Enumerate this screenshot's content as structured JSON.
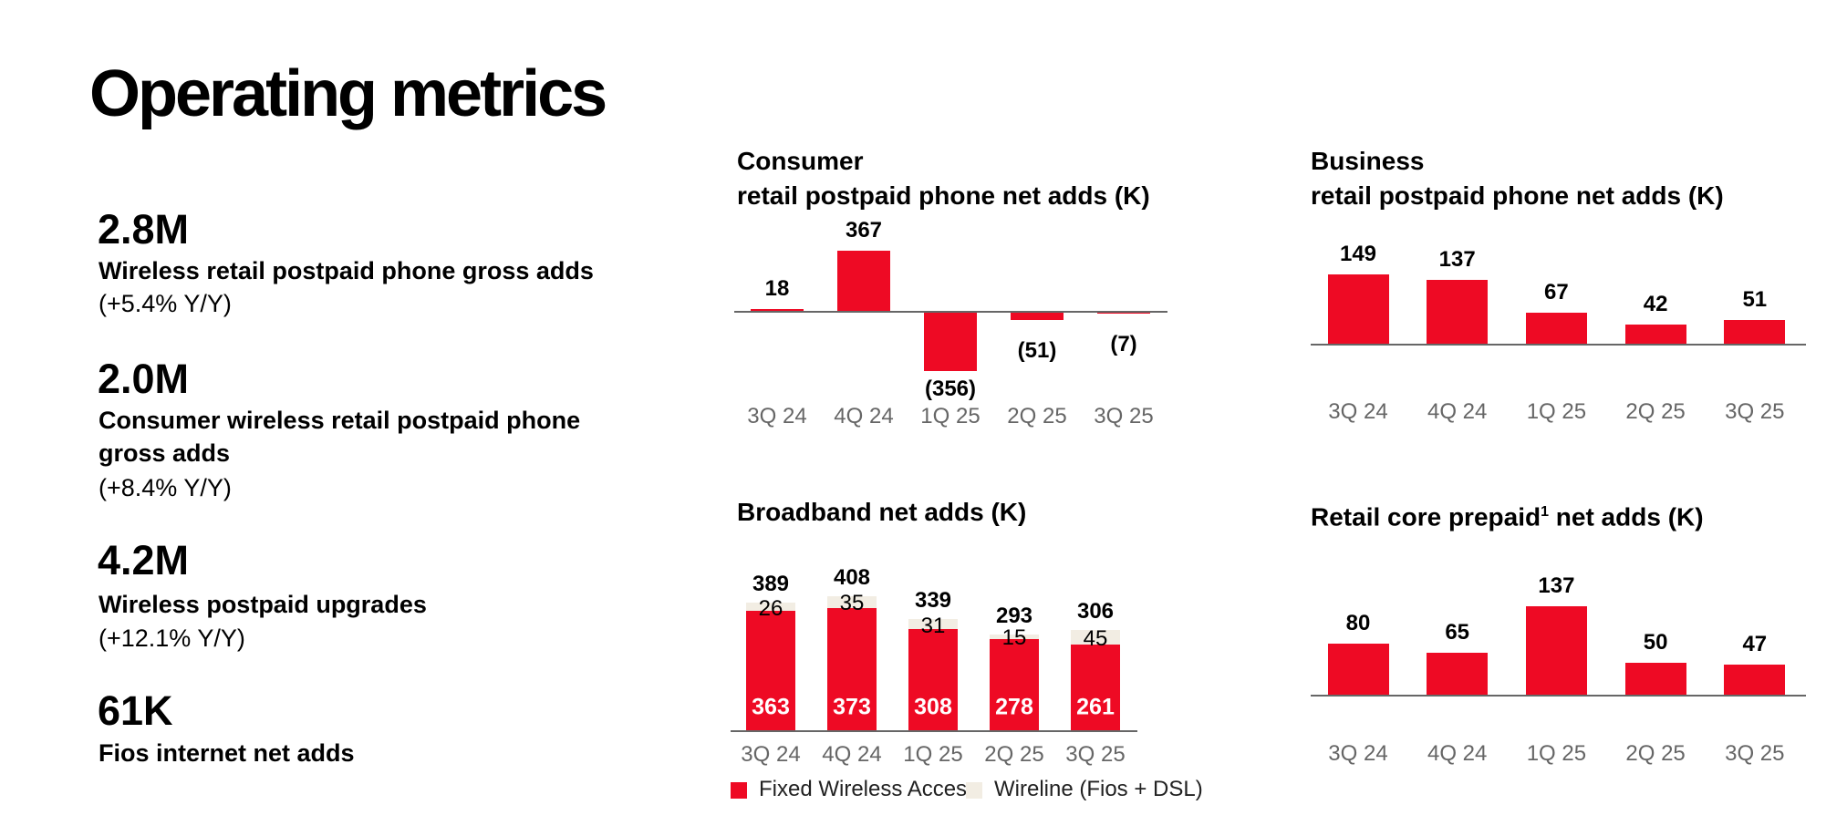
{
  "title": "Operating metrics",
  "metrics": [
    {
      "value": "2.8M",
      "label": "Wireless retail postpaid phone gross adds",
      "change": "(+5.4% Y/Y)"
    },
    {
      "value": "2.0M",
      "label_lines": [
        "Consumer wireless retail postpaid phone",
        "gross adds"
      ],
      "change": "(+8.4% Y/Y)"
    },
    {
      "value": "4.2M",
      "label": "Wireless postpaid upgrades",
      "change": "(+12.1% Y/Y)"
    },
    {
      "value": "61K",
      "label": "Fios internet net adds"
    }
  ],
  "colors": {
    "red": "#EE0A24",
    "beige": "#F2EDE3",
    "axis": "#666666"
  },
  "chart_data": [
    {
      "type": "bar",
      "title_lines": [
        "Consumer",
        "retail postpaid phone net adds (K)"
      ],
      "categories": [
        "3Q 24",
        "4Q 24",
        "1Q 25",
        "2Q 25",
        "3Q 25"
      ],
      "values": [
        18,
        367,
        -356,
        -51,
        -7
      ],
      "labels": [
        "18",
        "367",
        "(356)",
        "(51)",
        "(7)"
      ]
    },
    {
      "type": "bar",
      "title_lines": [
        "Business",
        "retail postpaid phone net adds (K)"
      ],
      "categories": [
        "3Q 24",
        "4Q 24",
        "1Q 25",
        "2Q 25",
        "3Q 25"
      ],
      "values": [
        149,
        137,
        67,
        42,
        51
      ],
      "labels": [
        "149",
        "137",
        "67",
        "42",
        "51"
      ]
    },
    {
      "type": "bar",
      "stacked": true,
      "title": "Broadband net adds (K)",
      "categories": [
        "3Q 24",
        "4Q 24",
        "1Q 25",
        "2Q 25",
        "3Q 25"
      ],
      "series": [
        {
          "name": "Fixed Wireless Access",
          "values": [
            363,
            373,
            308,
            278,
            261
          ]
        },
        {
          "name": "Wireline (Fios + DSL)",
          "values": [
            26,
            35,
            31,
            15,
            45
          ]
        }
      ],
      "totals": [
        389,
        408,
        339,
        293,
        306
      ],
      "legend": "bottom"
    },
    {
      "type": "bar",
      "title": "Retail core prepaid",
      "title_sup": "1",
      "title_suffix": " net adds (K)",
      "categories": [
        "3Q 24",
        "4Q 24",
        "1Q 25",
        "2Q 25",
        "3Q 25"
      ],
      "values": [
        80,
        65,
        137,
        50,
        47
      ],
      "labels": [
        "80",
        "65",
        "137",
        "50",
        "47"
      ]
    }
  ]
}
